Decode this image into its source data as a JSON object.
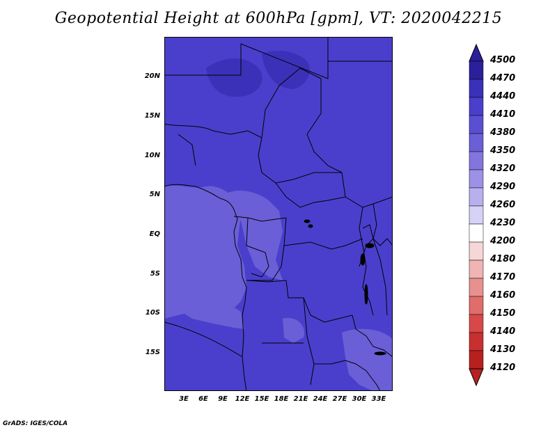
{
  "title": "Geopotential Height at 600hPa [gpm], VT: 2020042215",
  "footer": "GrADS: IGES/COLA",
  "map": {
    "y_ticks": [
      "20N",
      "15N",
      "10N",
      "5N",
      "EQ",
      "5S",
      "10S",
      "15S"
    ],
    "x_ticks": [
      "3E",
      "6E",
      "9E",
      "12E",
      "15E",
      "18E",
      "21E",
      "24E",
      "27E",
      "30E",
      "33E"
    ],
    "field_colors": {
      "main": "#4a3fcc",
      "low": "#6a5fd6",
      "high": "#3b31b8",
      "border": "#000000"
    }
  },
  "colorbar": {
    "levels": [
      "4500",
      "4470",
      "4440",
      "4410",
      "4380",
      "4350",
      "4320",
      "4290",
      "4260",
      "4230",
      "4200",
      "4180",
      "4170",
      "4160",
      "4150",
      "4140",
      "4130",
      "4120"
    ],
    "colors": [
      "#2b1f9c",
      "#3b31b8",
      "#4a3fcc",
      "#5a4fd2",
      "#6a5fd6",
      "#8275de",
      "#9c91e6",
      "#b8b0ee",
      "#d6d2f6",
      "#ffffff",
      "#f6d6d6",
      "#f0b4b4",
      "#e89090",
      "#e06c6c",
      "#d84848",
      "#c83030",
      "#b82020"
    ]
  }
}
